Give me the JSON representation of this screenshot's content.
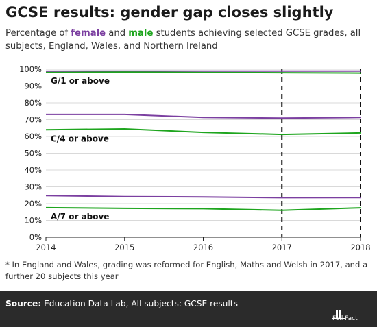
{
  "header": {
    "title": "GCSE results: gender gap closes slightly",
    "subtitle_pre": "Percentage of ",
    "subtitle_female": "female",
    "subtitle_mid": " and ",
    "subtitle_male": "male",
    "subtitle_post": " students achieving selected GCSE grades, all subjects, England, Wales, and Northern Ireland"
  },
  "footnote": "* In England and Wales, grading was reformed for English, Maths and Welsh in 2017, and a further 20 subjects this year",
  "source": {
    "label": "Source:",
    "text": " Education Data Lab, All subjects: GCSE results",
    "logo_text": "Full Fact"
  },
  "colors": {
    "female": "#7b3fa0",
    "male": "#1ea51e",
    "background": "#ffffff",
    "source_bar": "#2b2b2b"
  },
  "chart_data": {
    "type": "line",
    "x": [
      2014,
      2015,
      2016,
      2017,
      2018
    ],
    "xticks": [
      "2014",
      "2015",
      "2016",
      "2017",
      "2018"
    ],
    "ylim": [
      0,
      100
    ],
    "yticks": [
      "0%",
      "10%",
      "20%",
      "30%",
      "40%",
      "50%",
      "60%",
      "70%",
      "80%",
      "90%",
      "100%"
    ],
    "grid": true,
    "reform_markers": [
      2017,
      2018
    ],
    "band_labels": [
      {
        "text": "G/1 or above",
        "y": 93
      },
      {
        "text": "C/4 or above",
        "y": 58.5
      },
      {
        "text": "A/7 or above",
        "y": 12.2
      }
    ],
    "series": [
      {
        "group": "female",
        "band": "G/1 or above",
        "values": [
          98.8,
          98.9,
          98.9,
          98.9,
          98.9
        ]
      },
      {
        "group": "male",
        "band": "G/1 or above",
        "values": [
          98.0,
          98.3,
          98.0,
          97.9,
          97.7
        ]
      },
      {
        "group": "female",
        "band": "C/4 or above",
        "values": [
          73.1,
          73.1,
          71.3,
          70.9,
          71.3
        ]
      },
      {
        "group": "male",
        "band": "C/4 or above",
        "values": [
          64.0,
          64.5,
          62.4,
          61.2,
          62.1
        ]
      },
      {
        "group": "female",
        "band": "A/7 or above",
        "values": [
          24.8,
          24.2,
          24.0,
          23.5,
          23.6
        ]
      },
      {
        "group": "male",
        "band": "A/7 or above",
        "values": [
          17.6,
          17.2,
          17.0,
          16.0,
          17.5
        ]
      }
    ]
  }
}
